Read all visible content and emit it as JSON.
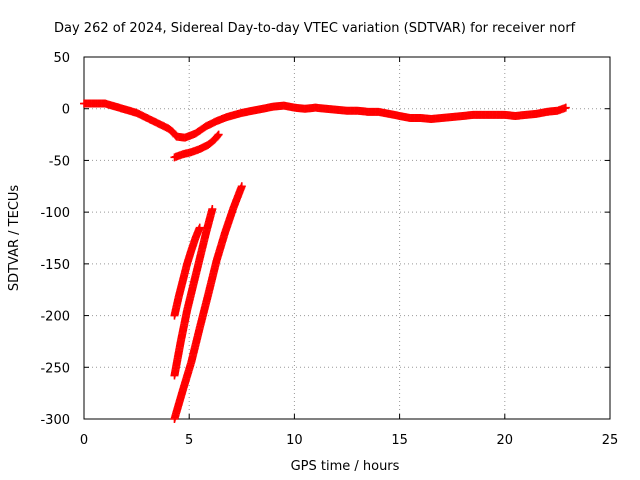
{
  "chart_data": {
    "type": "scatter",
    "title": "Day 262 of 2024, Sidereal Day-to-day VTEC variation (SDTVAR) for receiver norf",
    "xlabel": "GPS time / hours",
    "ylabel": "SDTVAR / TECUs",
    "xlim": [
      0,
      25
    ],
    "ylim": [
      -300,
      50
    ],
    "xticks": [
      0,
      5,
      10,
      15,
      20,
      25
    ],
    "yticks": [
      50,
      0,
      -50,
      -100,
      -150,
      -200,
      -250,
      -300
    ],
    "grid": true,
    "legend": "none",
    "marker": "plus",
    "color": "#ff0000",
    "series": [
      {
        "points": [
          [
            0.0,
            5
          ],
          [
            0.5,
            5
          ],
          [
            1.0,
            5
          ],
          [
            1.5,
            2
          ],
          [
            2.0,
            -1
          ],
          [
            2.5,
            -4
          ],
          [
            3.0,
            -9
          ],
          [
            3.5,
            -14
          ],
          [
            4.0,
            -19
          ],
          [
            4.2,
            -22
          ],
          [
            4.4,
            -27
          ],
          [
            4.8,
            -28
          ],
          [
            5.3,
            -24
          ],
          [
            5.8,
            -17
          ],
          [
            6.3,
            -12
          ],
          [
            6.8,
            -8
          ],
          [
            7.5,
            -4
          ],
          [
            8.0,
            -2
          ],
          [
            8.5,
            0
          ],
          [
            9.0,
            2
          ],
          [
            9.5,
            3
          ],
          [
            10.0,
            1
          ],
          [
            10.5,
            0
          ],
          [
            11.0,
            1
          ],
          [
            11.5,
            0
          ],
          [
            12.0,
            -1
          ],
          [
            12.5,
            -2
          ],
          [
            13.0,
            -2
          ],
          [
            13.5,
            -3
          ],
          [
            14.0,
            -3
          ],
          [
            14.5,
            -5
          ],
          [
            15.0,
            -7
          ],
          [
            15.5,
            -9
          ],
          [
            16.0,
            -9
          ],
          [
            16.5,
            -10
          ],
          [
            17.0,
            -9
          ],
          [
            17.5,
            -8
          ],
          [
            18.0,
            -7
          ],
          [
            18.5,
            -6
          ],
          [
            19.0,
            -6
          ],
          [
            19.5,
            -6
          ],
          [
            20.0,
            -6
          ],
          [
            20.5,
            -7
          ],
          [
            21.0,
            -6
          ],
          [
            21.5,
            -5
          ],
          [
            22.0,
            -3
          ],
          [
            22.5,
            -2
          ],
          [
            22.9,
            1
          ]
        ]
      },
      {
        "points": [
          [
            4.3,
            -47
          ],
          [
            4.7,
            -44
          ],
          [
            5.1,
            -42
          ],
          [
            5.5,
            -39
          ],
          [
            5.9,
            -35
          ],
          [
            6.2,
            -30
          ],
          [
            6.4,
            -25
          ]
        ]
      },
      {
        "points": [
          [
            4.3,
            -200
          ],
          [
            4.5,
            -182
          ],
          [
            4.7,
            -166
          ],
          [
            4.9,
            -150
          ],
          [
            5.1,
            -137
          ],
          [
            5.3,
            -125
          ],
          [
            5.5,
            -115
          ]
        ]
      },
      {
        "points": [
          [
            4.3,
            -258
          ],
          [
            4.6,
            -225
          ],
          [
            4.9,
            -195
          ],
          [
            5.2,
            -170
          ],
          [
            5.5,
            -145
          ],
          [
            5.8,
            -120
          ],
          [
            6.1,
            -97
          ]
        ]
      },
      {
        "points": [
          [
            4.3,
            -300
          ],
          [
            4.7,
            -272
          ],
          [
            5.1,
            -245
          ],
          [
            5.5,
            -212
          ],
          [
            5.9,
            -180
          ],
          [
            6.3,
            -147
          ],
          [
            6.7,
            -120
          ],
          [
            7.1,
            -96
          ],
          [
            7.5,
            -75
          ]
        ]
      }
    ]
  }
}
